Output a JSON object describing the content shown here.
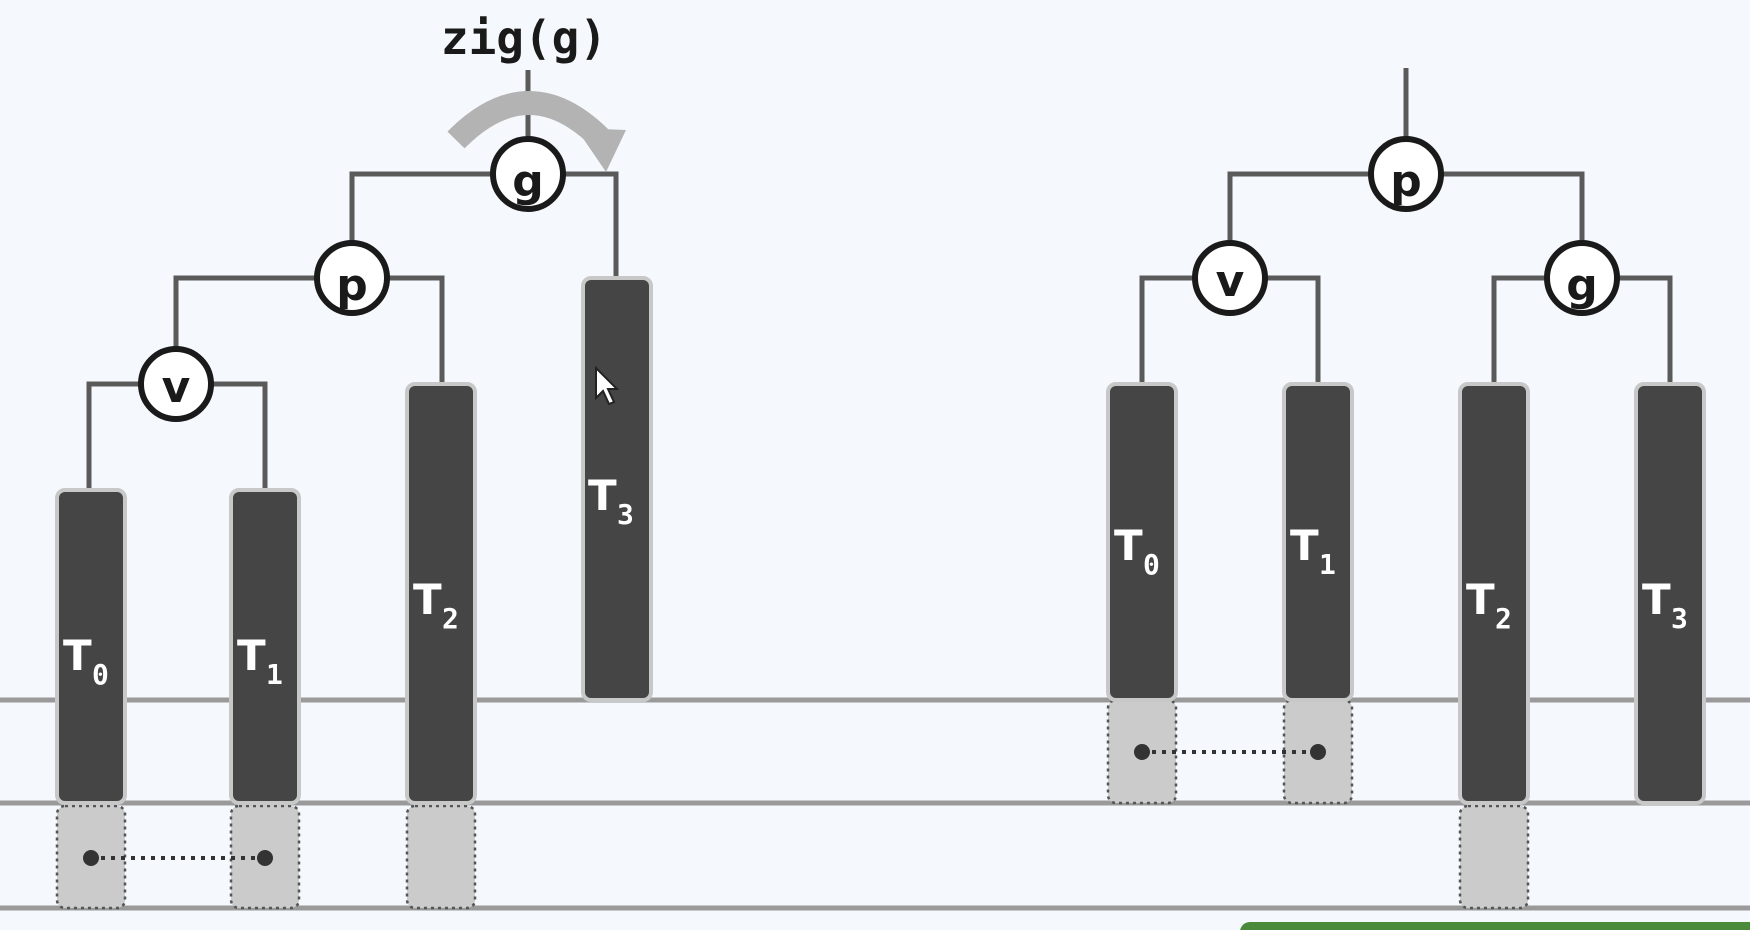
{
  "operation_label": "zig(g)",
  "icons": [
    "rotation-arrow-icon",
    "mouse-cursor-icon"
  ],
  "colors": {
    "background": "#f5f8fc",
    "edge": "#5a5a5a",
    "subtree_fill": "#454545",
    "subtree_border": "#c8c8c8",
    "guide_line": "#9a9a9a",
    "placeholder_fill": "#cbcbcb",
    "arrow": "#b3b3b3",
    "accent_green": "#4a8a3a"
  },
  "before": {
    "nodes": [
      {
        "id": "g",
        "label": "g"
      },
      {
        "id": "p",
        "label": "p"
      },
      {
        "id": "v",
        "label": "v"
      }
    ],
    "subtrees": [
      {
        "id": "T0",
        "letter": "T",
        "index": "0"
      },
      {
        "id": "T1",
        "letter": "T",
        "index": "1"
      },
      {
        "id": "T2",
        "letter": "T",
        "index": "2"
      },
      {
        "id": "T3",
        "letter": "T",
        "index": "3"
      }
    ]
  },
  "after": {
    "nodes": [
      {
        "id": "p",
        "label": "p"
      },
      {
        "id": "v",
        "label": "v"
      },
      {
        "id": "g",
        "label": "g"
      }
    ],
    "subtrees": [
      {
        "id": "T0",
        "letter": "T",
        "index": "0"
      },
      {
        "id": "T1",
        "letter": "T",
        "index": "1"
      },
      {
        "id": "T2",
        "letter": "T",
        "index": "2"
      },
      {
        "id": "T3",
        "letter": "T",
        "index": "3"
      }
    ]
  }
}
